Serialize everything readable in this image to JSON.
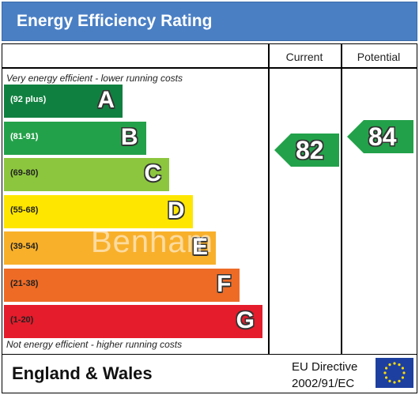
{
  "header": {
    "title": "Energy Efficiency Rating"
  },
  "columns": {
    "current": "Current",
    "potential": "Potential"
  },
  "captions": {
    "top": "Very energy efficient - lower running costs",
    "bottom": "Not energy efficient - higher running costs"
  },
  "watermark": "Benham",
  "chart_data": {
    "type": "bar",
    "categories": [
      "A",
      "B",
      "C",
      "D",
      "E",
      "F",
      "G"
    ],
    "ranges": [
      "(92 plus)",
      "(81-91)",
      "(69-80)",
      "(55-68)",
      "(39-54)",
      "(21-38)",
      "(1-20)"
    ],
    "colors": [
      "#108040",
      "#23a14a",
      "#8cc63e",
      "#ffe600",
      "#f8b02b",
      "#ee6b26",
      "#e41c2b"
    ],
    "range_text_colors": [
      "#ffffff",
      "#ffffff",
      "#222222",
      "#222222",
      "#222222",
      "#222222",
      "#222222"
    ],
    "current": {
      "value": 82,
      "band": "B",
      "color": "#23a14a"
    },
    "potential": {
      "value": 84,
      "band": "B",
      "color": "#23a14a"
    }
  },
  "footer": {
    "region": "England & Wales",
    "directive_line1": "EU Directive",
    "directive_line2": "2002/91/EC"
  }
}
